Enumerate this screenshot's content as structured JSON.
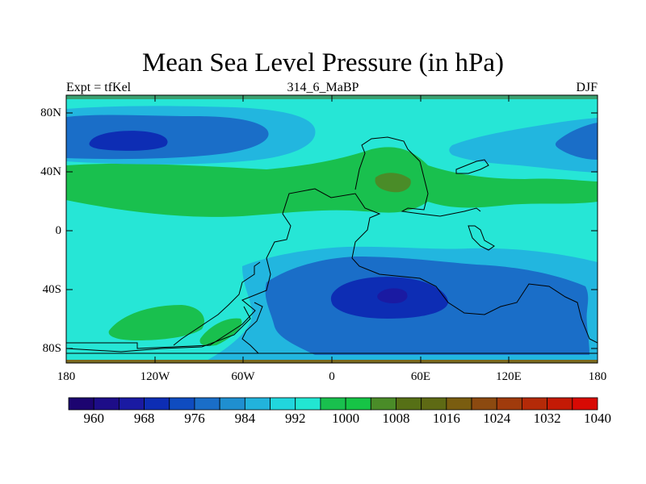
{
  "title": "Mean Sea Level Pressure (in hPa)",
  "left_string": "Expt = tfKel",
  "center_string": "314_6_MaBP",
  "right_string": "DJF",
  "y_ticks": [
    "80N",
    "40N",
    "0",
    "40S",
    "80S"
  ],
  "x_ticks": [
    "180",
    "120W",
    "60W",
    "0",
    "60E",
    "120E",
    "180"
  ],
  "colorbar": {
    "labels": [
      "960",
      "968",
      "976",
      "984",
      "992",
      "1000",
      "1008",
      "1016",
      "1024",
      "1032",
      "1040"
    ],
    "colors": [
      "#1c0470",
      "#1d0d88",
      "#1a1aa2",
      "#0d2db4",
      "#0f4cc0",
      "#1a6ec8",
      "#1f8fd0",
      "#22b3dc",
      "#21d6dd",
      "#22e6d2",
      "#19c04e",
      "#16c446",
      "#4a8c28",
      "#567016",
      "#5e6a14",
      "#7a5d10",
      "#8c4a10",
      "#a03b0c",
      "#b42a08",
      "#c41a05",
      "#d80a04"
    ]
  },
  "map_colors": {
    "background": "#26e6d6",
    "band_low_1": "#22b6df",
    "band_low_2": "#1a6ec8",
    "band_low_3": "#0d2db4",
    "band_low_4": "#1a1aa2",
    "band_high_1": "#19c04e",
    "band_high_2": "#4a8c28",
    "coast": "#000000"
  }
}
